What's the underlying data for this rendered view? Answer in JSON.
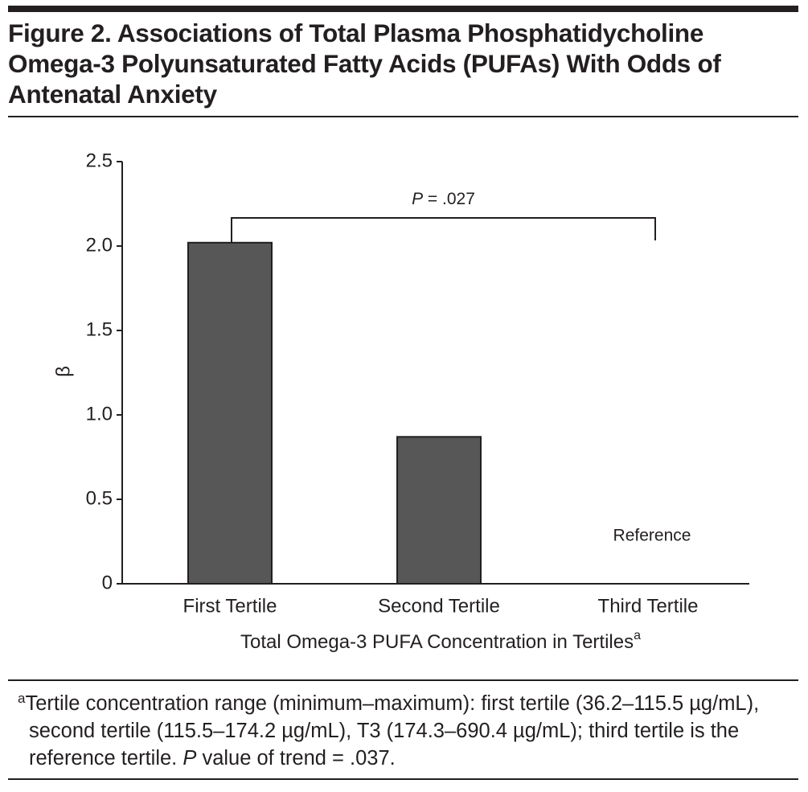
{
  "chart_data": {
    "type": "bar",
    "title": "Figure 2. Associations of Total Plasma Phosphatidycholine Omega-3 Polyunsaturated Fatty Acids (PUFAs) With Odds of Antenatal Anxiety",
    "y_label": "β",
    "x_label": "Total Omega-3 PUFA Concentration in Tertiles",
    "x_label_marker": "a",
    "categories": [
      "First Tertile",
      "Second Tertile",
      "Third Tertile"
    ],
    "values": [
      2.02,
      0.87,
      0
    ],
    "color": "#575757",
    "ylim": [
      0,
      2.5
    ],
    "yticks": [
      0,
      0.5,
      {
        "value": 1,
        "label": "1.0"
      },
      1.5,
      {
        "value": 2,
        "label": "2.0"
      },
      2.5
    ],
    "annotations": {
      "reference": "Reference",
      "bracket_italic": "P",
      "bracket_text": " = .027"
    },
    "footnote": {
      "marker": "a",
      "text": "Tertile concentration range (minimum–maximum): first tertile (36.2–115.5 µg/mL), second tertile (115.5–174.2 µg/mL), T3 (174.3–690.4 µg/mL); third tertile is the reference tertile. ",
      "italic": "P",
      "text_end": " value of trend = .037."
    }
  }
}
